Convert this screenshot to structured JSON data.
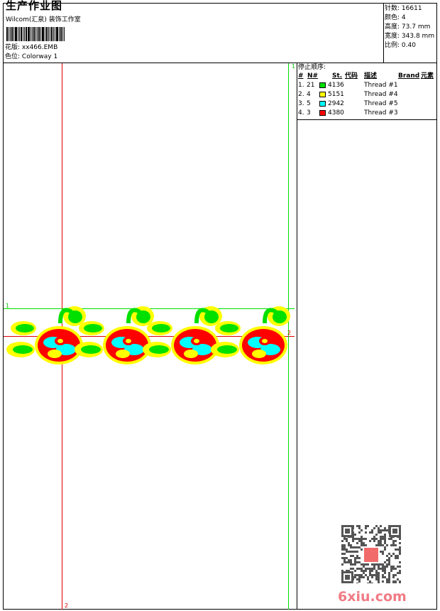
{
  "header": {
    "title": "生产作业图",
    "company": "Wilcom(汇泉) 装饰工作室",
    "design_label": "花版:",
    "design_value": "xx466.EMB",
    "colorway_label": "色位:",
    "colorway_value": "Colorway 1"
  },
  "info": [
    {
      "label": "针数:",
      "value": "16611"
    },
    {
      "label": "颜色:",
      "value": "4"
    },
    {
      "label": "高度:",
      "value": "73.7 mm"
    },
    {
      "label": "宽度:",
      "value": "343.8 mm"
    },
    {
      "label": "比例:",
      "value": "0.40"
    }
  ],
  "stop_sequence": {
    "title": "停止顺序:",
    "headers": {
      "num": "#",
      "n": "N#",
      "st": "St.",
      "code": "代码",
      "desc": "描述",
      "brand": "Brand",
      "element": "元素"
    },
    "rows": [
      {
        "num": "1.",
        "n": "21",
        "color": "#00e000",
        "code": "4136",
        "desc": "Thread #1"
      },
      {
        "num": "2.",
        "n": "4",
        "color": "#ffff00",
        "code": "5151",
        "desc": "Thread #4"
      },
      {
        "num": "3.",
        "n": "5",
        "color": "#00ffff",
        "code": "2942",
        "desc": "Thread #5"
      },
      {
        "num": "4.",
        "n": "3",
        "color": "#ff0000",
        "code": "4380",
        "desc": "Thread #3"
      }
    ]
  },
  "guides": {
    "green_1": "1",
    "green_2": "1",
    "red_2h": "2",
    "red_2v": "2"
  },
  "colors": {
    "green": "#00e000",
    "yellow": "#ffff00",
    "cyan": "#00ffff",
    "red": "#ff0000"
  },
  "watermark": {
    "text": "6xiu.com",
    "icon": "qr-code-icon"
  }
}
